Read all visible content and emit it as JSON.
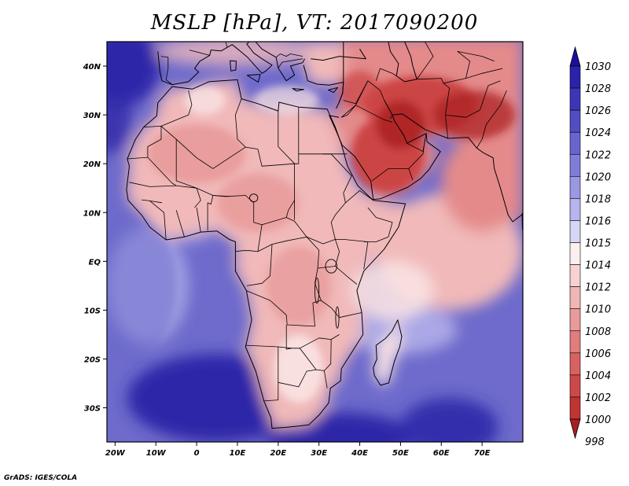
{
  "title": "MSLP [hPa], VT: 2017090200",
  "credit": "GrADS: IGES/COLA",
  "map": {
    "lon_range": [
      -22,
      80
    ],
    "lat_range": [
      -37,
      45
    ],
    "x_ticks": [
      {
        "lon": -20,
        "label": "20W"
      },
      {
        "lon": -10,
        "label": "10W"
      },
      {
        "lon": 0,
        "label": "0"
      },
      {
        "lon": 10,
        "label": "10E"
      },
      {
        "lon": 20,
        "label": "20E"
      },
      {
        "lon": 30,
        "label": "30E"
      },
      {
        "lon": 40,
        "label": "40E"
      },
      {
        "lon": 50,
        "label": "50E"
      },
      {
        "lon": 60,
        "label": "60E"
      },
      {
        "lon": 70,
        "label": "70E"
      }
    ],
    "y_ticks": [
      {
        "lat": 40,
        "label": "40N"
      },
      {
        "lat": 30,
        "label": "30N"
      },
      {
        "lat": 20,
        "label": "20N"
      },
      {
        "lat": 10,
        "label": "10N"
      },
      {
        "lat": 0,
        "label": "EQ"
      },
      {
        "lat": -10,
        "label": "10S"
      },
      {
        "lat": -20,
        "label": "20S"
      },
      {
        "lat": -30,
        "label": "30S"
      }
    ]
  },
  "colorbar": {
    "levels": [
      {
        "label": "1030",
        "color": "#1a0f9e"
      },
      {
        "label": "1028",
        "color": "#2a22aa"
      },
      {
        "label": "1026",
        "color": "#3c36b6"
      },
      {
        "label": "1024",
        "color": "#524dc2"
      },
      {
        "label": "1022",
        "color": "#6965ce"
      },
      {
        "label": "1020",
        "color": "#807dd9"
      },
      {
        "label": "1018",
        "color": "#9a98e3"
      },
      {
        "label": "1016",
        "color": "#b6b5ec"
      },
      {
        "label": "1015",
        "color": "#d6d6f6"
      },
      {
        "label": "1014",
        "color": "#fbefef"
      },
      {
        "label": "1012",
        "color": "#f7d2d2"
      },
      {
        "label": "1010",
        "color": "#f0b6b6"
      },
      {
        "label": "1008",
        "color": "#e99a9a"
      },
      {
        "label": "1006",
        "color": "#e17d7d"
      },
      {
        "label": "1004",
        "color": "#d86262"
      },
      {
        "label": "1002",
        "color": "#cd4848"
      },
      {
        "label": "1000",
        "color": "#c13434"
      },
      {
        "label": "998",
        "color": "#a82020"
      }
    ]
  },
  "colors": {
    "ocean_deep": "#2e28a8",
    "ocean_mid": "#6e6bcc",
    "ocean_light": "#b9b8ec",
    "land_pale": "#f9e3e3",
    "land_light": "#f1b9b9",
    "land_mid": "#e48a8a",
    "land_hot": "#cc4444",
    "land_hottest": "#a91f1f"
  }
}
